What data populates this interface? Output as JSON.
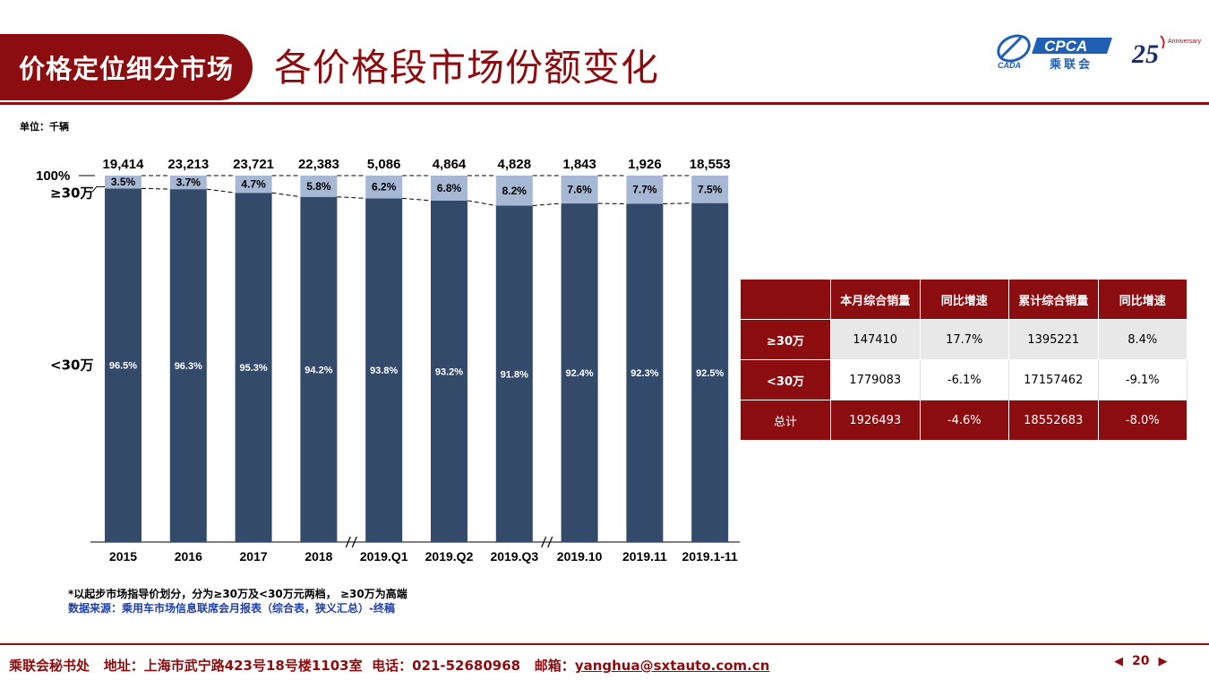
{
  "header": {
    "tab_label": "价格定位细分市场",
    "title": "各价格段市场份额变化",
    "logo_cpca_text": "CPCA",
    "logo_cpca_sub": "乘联会",
    "logo_cada_text": "CADA",
    "logo_anniv_number": "25",
    "logo_anniv_text": "Anniversary"
  },
  "unit_note": "单位：千辆",
  "chart_data": {
    "type": "bar",
    "stacked": true,
    "normalized": true,
    "categories": [
      "2015",
      "2016",
      "2017",
      "2018",
      "2019.Q1",
      "2019.Q2",
      "2019.Q3",
      "2019.10",
      "2019.11",
      "2019.1-11"
    ],
    "totals": [
      "19,414",
      "23,213",
      "23,721",
      "22,383",
      "5,086",
      "4,864",
      "4,828",
      "1,843",
      "1,926",
      "18,553"
    ],
    "series": [
      {
        "name": "<30万",
        "values": [
          96.5,
          96.3,
          95.3,
          94.2,
          93.8,
          93.2,
          91.8,
          92.4,
          92.3,
          92.5
        ],
        "labels": [
          "96.5%",
          "96.3%",
          "95.3%",
          "94.2%",
          "93.8%",
          "93.2%",
          "91.8%",
          "92.4%",
          "92.3%",
          "92.5%"
        ],
        "color": "#334a6b"
      },
      {
        "name": "≥30万",
        "values": [
          3.5,
          3.7,
          4.7,
          5.8,
          6.2,
          6.8,
          8.2,
          7.6,
          7.7,
          7.5
        ],
        "labels": [
          "3.5%",
          "3.7%",
          "4.7%",
          "5.8%",
          "6.2%",
          "6.8%",
          "8.2%",
          "7.6%",
          "7.7%",
          "7.5%"
        ],
        "color": "#a6b8d4"
      }
    ],
    "axis_top_label": "100%",
    "segment_labels": {
      "upper": "≥30万",
      "lower": "<30万"
    },
    "ylim": [
      0,
      100
    ],
    "group_breaks_after": [
      3,
      6
    ],
    "grid": false
  },
  "table": {
    "headers": [
      "",
      "本月综合销量",
      "同比增速",
      "累计综合销量",
      "同比增速"
    ],
    "rows": [
      {
        "label": "≥30万",
        "cells": [
          "147410",
          "17.7%",
          "1395221",
          "8.4%"
        ]
      },
      {
        "label": "<30万",
        "cells": [
          "1779083",
          "-6.1%",
          "17157462",
          "-9.1%"
        ]
      },
      {
        "label": "总计",
        "cells": [
          "1926493",
          "-4.6%",
          "18552683",
          "-8.0%"
        ]
      }
    ]
  },
  "footnote": "*以起步市场指导价划分，分为≥30万及<30万元两档， ≥30万为高端",
  "source": "数据来源：乘用车市场信息联席会月报表（综合表，狭义汇总）-终稿",
  "footer": {
    "org": "乘联会秘书处",
    "address": "地址：上海市武宁路423号18号楼1103室",
    "phone": "电话：021-52680968",
    "email_label": "邮箱：",
    "email": "yanghua@sxtauto.com.cn"
  },
  "pager": {
    "page": "20",
    "prev_icon": "◀",
    "next_icon": "▶"
  },
  "colors": {
    "brand": "#8b0d0f",
    "bar_dark": "#334a6b",
    "bar_light": "#a6b8d4",
    "source_blue": "#1f3fa8"
  }
}
